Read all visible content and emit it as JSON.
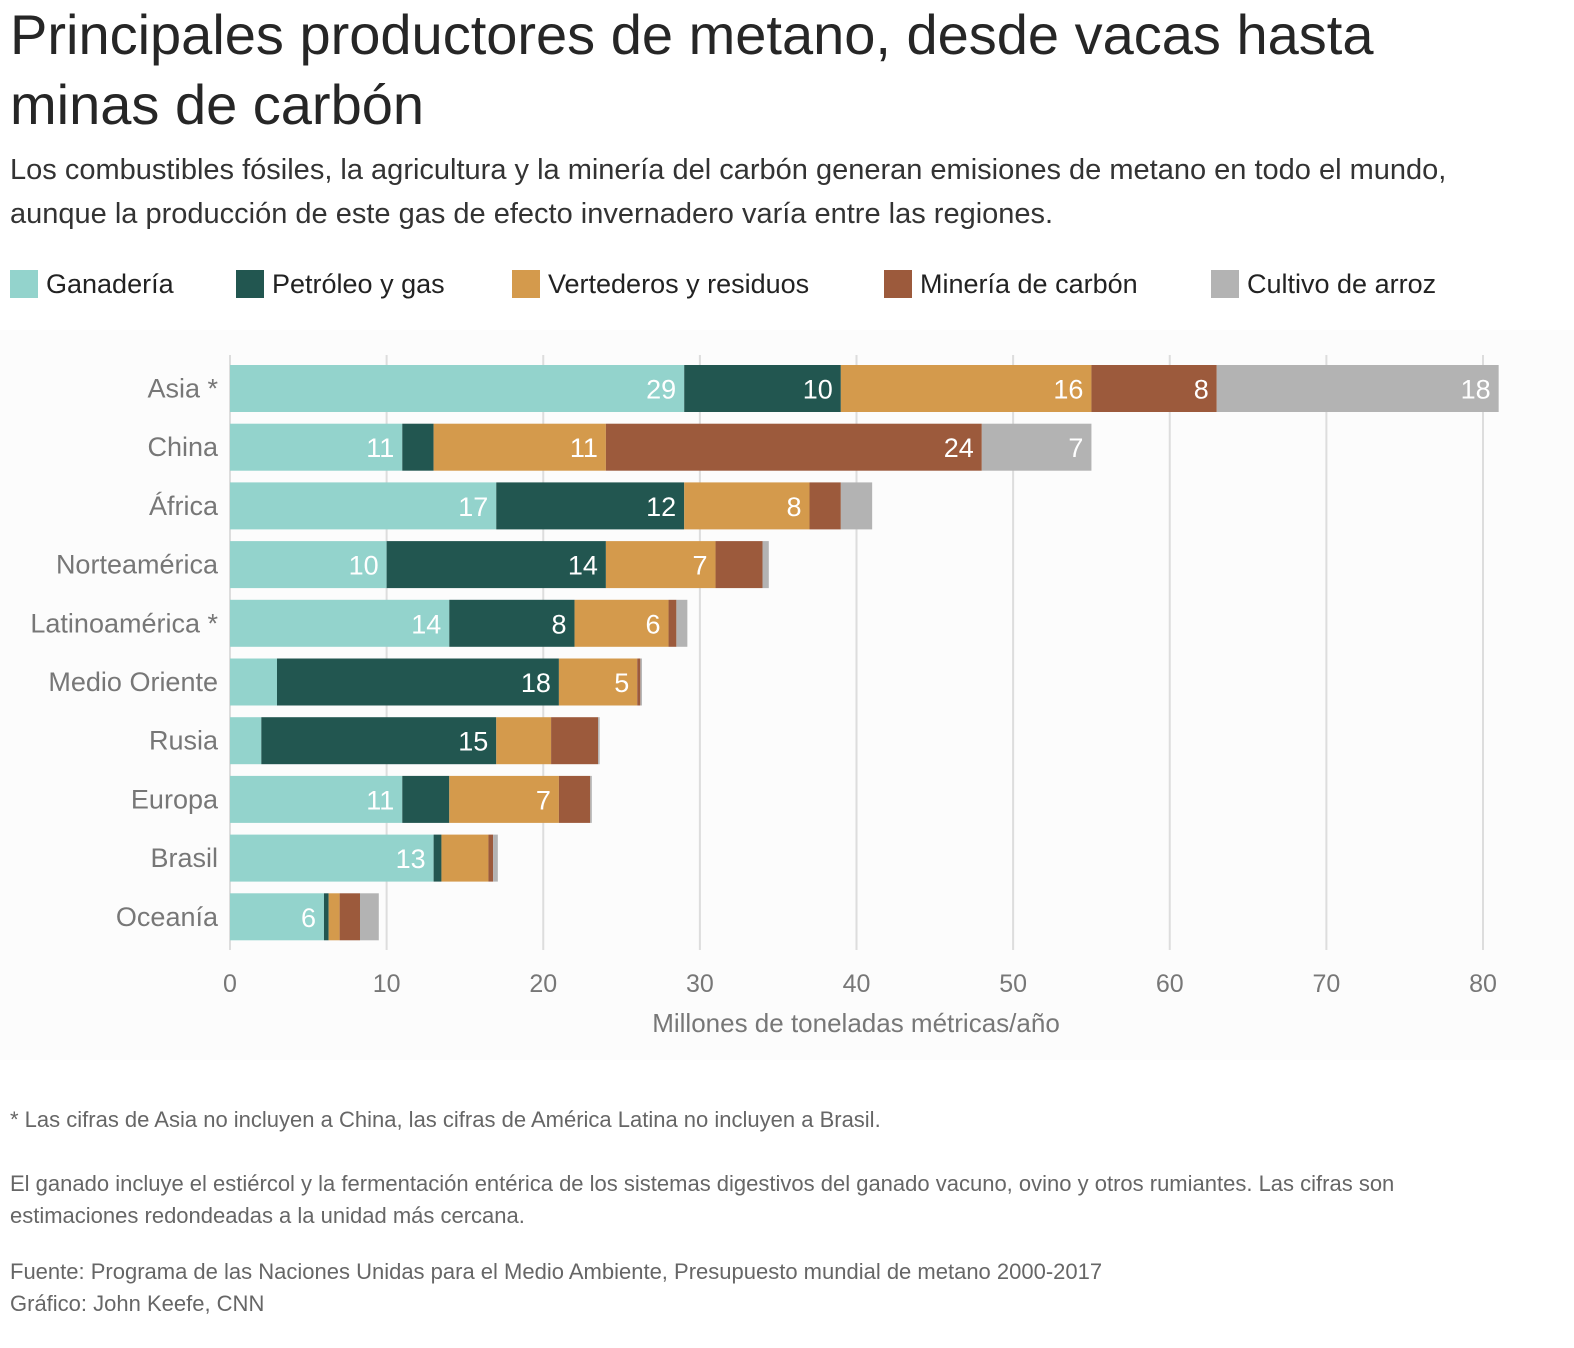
{
  "header": {
    "title": "Principales productores de metano, desde vacas hasta minas de carbón",
    "subtitle": "Los combustibles fósiles, la agricultura y la minería del carbón generan emisiones de metano en todo el mundo, aunque la producción de este gas de efecto invernadero varía entre las regiones."
  },
  "chart_data": {
    "type": "bar",
    "orientation": "horizontal",
    "stacked": true,
    "categories": [
      "Asia *",
      "China",
      "África",
      "Norteamérica",
      "Latinoamérica *",
      "Medio Oriente",
      "Rusia",
      "Europa",
      "Brasil",
      "Oceanía"
    ],
    "series": [
      {
        "name": "Ganadería",
        "color": "#93d3cc",
        "label_color": "#ffffff",
        "values": [
          29,
          11,
          17,
          10,
          14,
          3,
          2,
          11,
          13,
          6
        ],
        "labels": [
          "29",
          "11",
          "17",
          "10",
          "14",
          "",
          "",
          "11",
          "13",
          "6"
        ]
      },
      {
        "name": "Petróleo y gas",
        "color": "#225650",
        "label_color": "#ffffff",
        "values": [
          10,
          2,
          12,
          14,
          8,
          18,
          15,
          3,
          0.5,
          0.3
        ],
        "labels": [
          "10",
          "",
          "12",
          "14",
          "8",
          "18",
          "15",
          "",
          "",
          ""
        ]
      },
      {
        "name": "Vertederos y residuos",
        "color": "#d49a4c",
        "label_color": "#ffffff",
        "values": [
          16,
          11,
          8,
          7,
          6,
          5,
          3.5,
          7,
          3,
          0.7
        ],
        "labels": [
          "16",
          "11",
          "8",
          "7",
          "6",
          "5",
          "",
          "7",
          "",
          ""
        ]
      },
      {
        "name": "Minería de carbón",
        "color": "#9c5a3c",
        "label_color": "#ffffff",
        "values": [
          8,
          24,
          2,
          3,
          0.5,
          0.2,
          3,
          2,
          0.3,
          1.3
        ],
        "labels": [
          "8",
          "24",
          "",
          "",
          "",
          "",
          "",
          "",
          "",
          ""
        ]
      },
      {
        "name": "Cultivo de arroz",
        "color": "#b3b3b3",
        "label_color": "#ffffff",
        "values": [
          18,
          7,
          2,
          0.4,
          0.7,
          0.1,
          0.1,
          0.1,
          0.3,
          1.2
        ],
        "labels": [
          "18",
          "7",
          "",
          "",
          "",
          "",
          "",
          "",
          "",
          ""
        ]
      }
    ],
    "xlim": [
      0,
      80
    ],
    "xticks": [
      0,
      10,
      20,
      30,
      40,
      50,
      60,
      70,
      80
    ],
    "xlabel": "Millones de toneladas métricas/año",
    "grid": true,
    "legend": "top"
  },
  "notes": {
    "asterisk": "* Las cifras de Asia no incluyen a China, las cifras de América Latina no incluyen a Brasil.",
    "livestock": "El ganado incluye el estiércol y la fermentación entérica de los sistemas digestivos del ganado vacuno, ovino y otros rumiantes. Las cifras son estimaciones redondeadas a la unidad más cercana.",
    "source": "Fuente: Programa de las Naciones Unidas para el Medio Ambiente, Presupuesto mundial de metano 2000-2017",
    "credit": "Gráfico: John Keefe, CNN"
  }
}
